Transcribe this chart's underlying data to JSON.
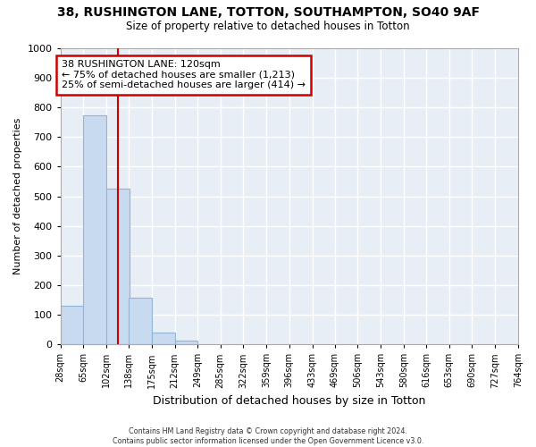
{
  "title1": "38, RUSHINGTON LANE, TOTTON, SOUTHAMPTON, SO40 9AF",
  "title2": "Size of property relative to detached houses in Totton",
  "xlabel": "Distribution of detached houses by size in Totton",
  "ylabel": "Number of detached properties",
  "bar_edges": [
    28,
    65,
    102,
    138,
    175,
    212,
    249,
    285,
    322,
    359,
    396,
    433,
    469,
    506,
    543,
    580,
    616,
    653,
    690,
    727,
    764
  ],
  "bar_heights": [
    130,
    775,
    525,
    157,
    40,
    13,
    0,
    0,
    0,
    0,
    0,
    0,
    0,
    0,
    0,
    0,
    0,
    0,
    0,
    0
  ],
  "bar_color": "#c8daf0",
  "bar_edgecolor": "#93b5d5",
  "red_line_x": 120,
  "red_line_color": "#cc0000",
  "annotation_text": "38 RUSHINGTON LANE: 120sqm\n← 75% of detached houses are smaller (1,213)\n25% of semi-detached houses are larger (414) →",
  "annotation_box_facecolor": "#ffffff",
  "annotation_box_edgecolor": "#cc0000",
  "ylim": [
    0,
    1000
  ],
  "yticks": [
    0,
    100,
    200,
    300,
    400,
    500,
    600,
    700,
    800,
    900,
    1000
  ],
  "footer": "Contains HM Land Registry data © Crown copyright and database right 2024.\nContains public sector information licensed under the Open Government Licence v3.0.",
  "plot_bg_color": "#e8eef5",
  "fig_bg_color": "#ffffff",
  "grid_color": "#ffffff"
}
